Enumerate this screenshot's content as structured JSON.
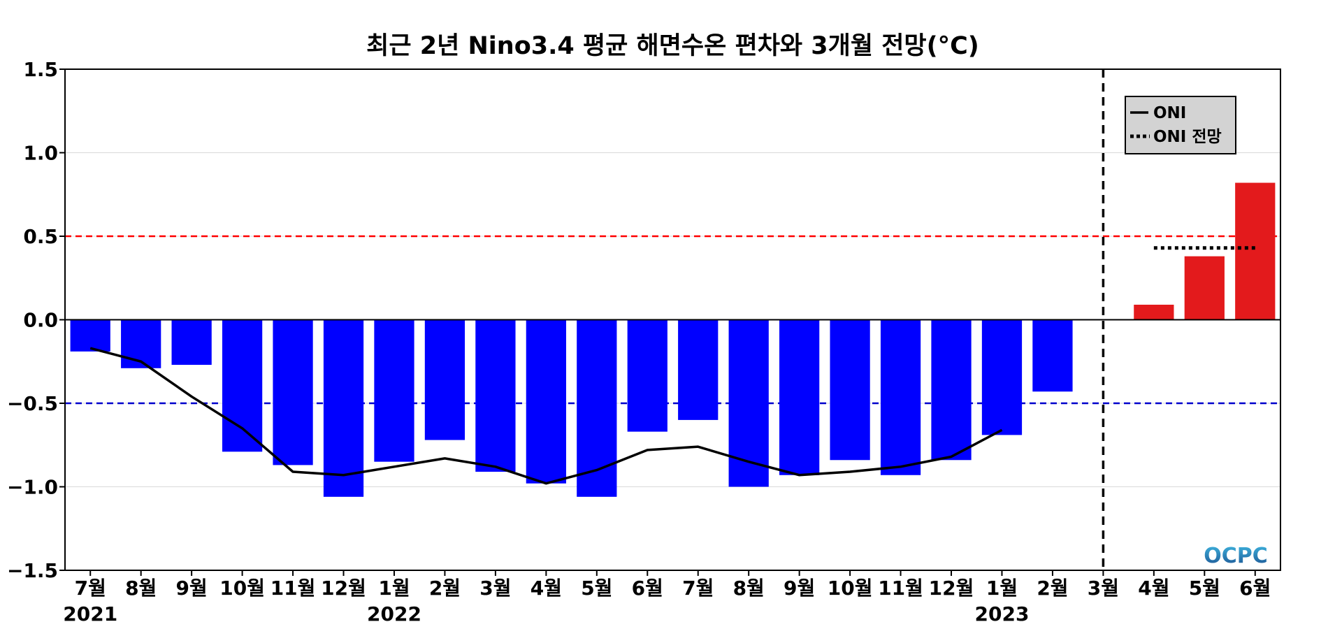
{
  "chart_data": {
    "type": "bar",
    "title": "최근 2년 Nino3.4 평균 해면수온 편차와 3개월 전망(°C)",
    "categories": [
      "7월",
      "8월",
      "9월",
      "10월",
      "11월",
      "12월",
      "1월",
      "2월",
      "3월",
      "4월",
      "5월",
      "6월",
      "7월",
      "8월",
      "9월",
      "10월",
      "11월",
      "12월",
      "1월",
      "2월",
      "3월",
      "4월",
      "5월",
      "6월"
    ],
    "year_labels": [
      {
        "index": 0,
        "label": "2021"
      },
      {
        "index": 6,
        "label": "2022"
      },
      {
        "index": 18,
        "label": "2023"
      }
    ],
    "ylim": [
      -1.5,
      1.5
    ],
    "yticks": [
      "1.5",
      "1.0",
      "0.5",
      "0.0",
      "−0.5",
      "−1.0",
      "−1.5"
    ],
    "ytick_values": [
      1.5,
      1.0,
      0.5,
      0.0,
      -0.5,
      -1.0,
      -1.5
    ],
    "grid": true,
    "series": [
      {
        "values": [
          -0.19,
          -0.29,
          -0.27,
          -0.79,
          -0.87,
          -1.06,
          -0.85,
          -0.72,
          -0.91,
          -0.98,
          -1.06,
          -0.67,
          -0.6,
          -1.0,
          -0.93,
          -0.84,
          -0.93,
          -0.84,
          -0.69,
          -0.43,
          null,
          null,
          null,
          null
        ],
        "color": "#0000ff"
      },
      {
        "values": [
          null,
          null,
          null,
          null,
          null,
          null,
          null,
          null,
          null,
          null,
          null,
          null,
          null,
          null,
          null,
          null,
          null,
          null,
          null,
          null,
          null,
          0.09,
          0.38,
          0.82
        ],
        "color": "#e31a1c"
      },
      {
        "name": "ONI",
        "type": "line",
        "style": "solid",
        "color": "#000000",
        "values": [
          -0.17,
          -0.25,
          -0.46,
          -0.65,
          -0.91,
          -0.93,
          -0.88,
          -0.83,
          -0.88,
          -0.98,
          -0.9,
          -0.78,
          -0.76,
          -0.85,
          -0.93,
          -0.91,
          -0.88,
          -0.82,
          -0.66,
          null,
          null,
          null,
          null,
          null
        ]
      },
      {
        "name": "ONI 전망",
        "type": "line",
        "style": "dotted",
        "color": "#000000",
        "value": 0.43,
        "from_index": 21,
        "to_index": 23
      }
    ],
    "reference_lines": [
      {
        "value": 0.5,
        "color": "#ff0000",
        "style": "dashed"
      },
      {
        "value": -0.5,
        "color": "#0000cc",
        "style": "dashed"
      }
    ],
    "vertical_marker": {
      "index": 20,
      "color": "#000000",
      "style": "dashed"
    },
    "legend": {
      "position": "top-right",
      "entries": [
        "ONI",
        "ONI 전망"
      ]
    },
    "logo": "OCPC"
  }
}
